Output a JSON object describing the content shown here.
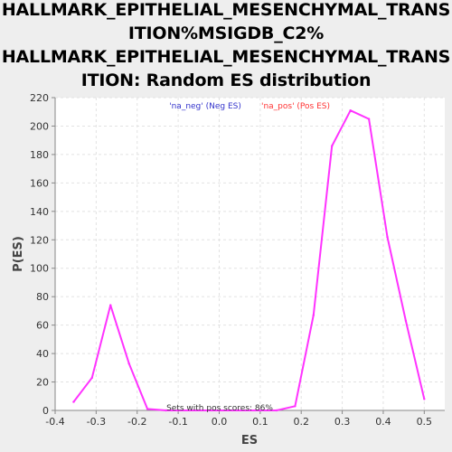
{
  "chart_data": {
    "type": "line",
    "title_lines": [
      "HALLMARK_EPITHELIAL_MESENCHYMAL_TRANS",
      "ITION%MSIGDB_C2%",
      "HALLMARK_EPITHELIAL_MESENCHYMAL_TRANS",
      "ITION: Random ES distribution"
    ],
    "xlabel": "ES",
    "ylabel": "P(ES)",
    "xlim": [
      -0.4,
      0.55
    ],
    "ylim": [
      0,
      220
    ],
    "x_ticks": [
      "-0.4",
      "-0.3",
      "-0.2",
      "-0.1",
      "0.0",
      "0.1",
      "0.2",
      "0.3",
      "0.4",
      "0.5"
    ],
    "x_tick_values": [
      -0.4,
      -0.3,
      -0.2,
      -0.1,
      0.0,
      0.1,
      0.2,
      0.3,
      0.4,
      0.5
    ],
    "y_ticks": [
      "0",
      "20",
      "40",
      "60",
      "80",
      "100",
      "120",
      "140",
      "160",
      "180",
      "200",
      "220"
    ],
    "y_tick_values": [
      0,
      20,
      40,
      60,
      80,
      100,
      120,
      140,
      160,
      180,
      200,
      220
    ],
    "grid": true,
    "legend": {
      "placement": "top-center",
      "entries": [
        {
          "label": "'na_neg' (Neg ES)",
          "color": "#3333cc"
        },
        {
          "label": "'na_pos' (Pos ES)",
          "color": "#ff3333"
        }
      ]
    },
    "annotation": "Sets with pos scores: 86%",
    "series": [
      {
        "color": "#ff33ff",
        "x": [
          -0.355,
          -0.31,
          -0.265,
          -0.22,
          -0.175,
          -0.13,
          0.14,
          0.185,
          0.23,
          0.275,
          0.32,
          0.365,
          0.41,
          0.455,
          0.5
        ],
        "y": [
          6,
          23,
          74,
          33,
          1,
          0,
          0,
          3,
          67,
          186,
          211,
          205,
          122,
          63,
          8
        ]
      }
    ]
  }
}
